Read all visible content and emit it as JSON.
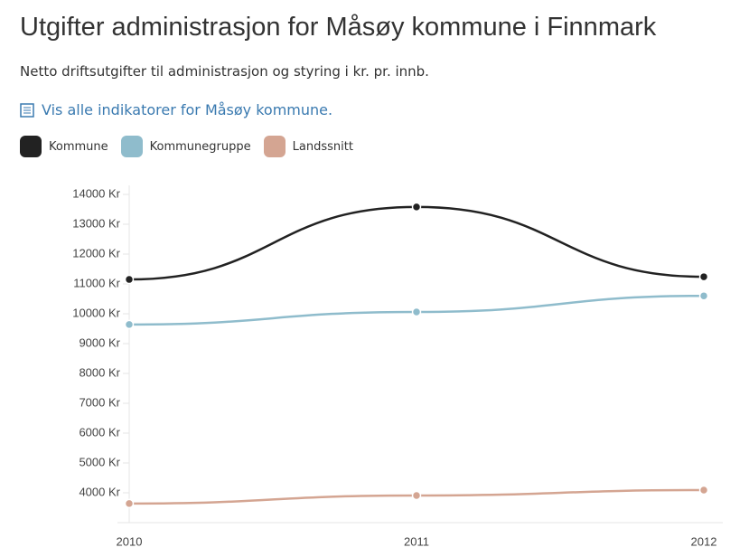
{
  "title": "Utgifter administrasjon for Måsøy kommune i Finnmark",
  "subtitle": "Netto driftsutgifter til administrasjon og styring i kr. pr. innb.",
  "link": "Vis alle indikatorer for Måsøy kommune.",
  "chart_data": {
    "type": "line",
    "categories": [
      "2010",
      "2011",
      "2012"
    ],
    "series": [
      {
        "name": "Kommune",
        "color": "#222222",
        "values": [
          11150,
          13580,
          11240
        ]
      },
      {
        "name": "Kommunegruppe",
        "color": "#8fbccc",
        "values": [
          9640,
          10060,
          10600
        ]
      },
      {
        "name": "Landssnitt",
        "color": "#d4a592",
        "values": [
          3640,
          3910,
          4090
        ]
      }
    ],
    "ylim": [
      3000,
      14000
    ],
    "yticks": [
      {
        "value": 4000,
        "label": "4000 Kr"
      },
      {
        "value": 5000,
        "label": "5000 Kr"
      },
      {
        "value": 6000,
        "label": "6000 Kr"
      },
      {
        "value": 7000,
        "label": "7000 Kr"
      },
      {
        "value": 8000,
        "label": "8000 Kr"
      },
      {
        "value": 9000,
        "label": "9000 Kr"
      },
      {
        "value": 10000,
        "label": "10000 Kr"
      },
      {
        "value": 11000,
        "label": "11000 Kr"
      },
      {
        "value": 12000,
        "label": "12000 Kr"
      },
      {
        "value": 13000,
        "label": "13000 Kr"
      },
      {
        "value": 14000,
        "label": "14000 Kr"
      }
    ],
    "grid": false
  }
}
